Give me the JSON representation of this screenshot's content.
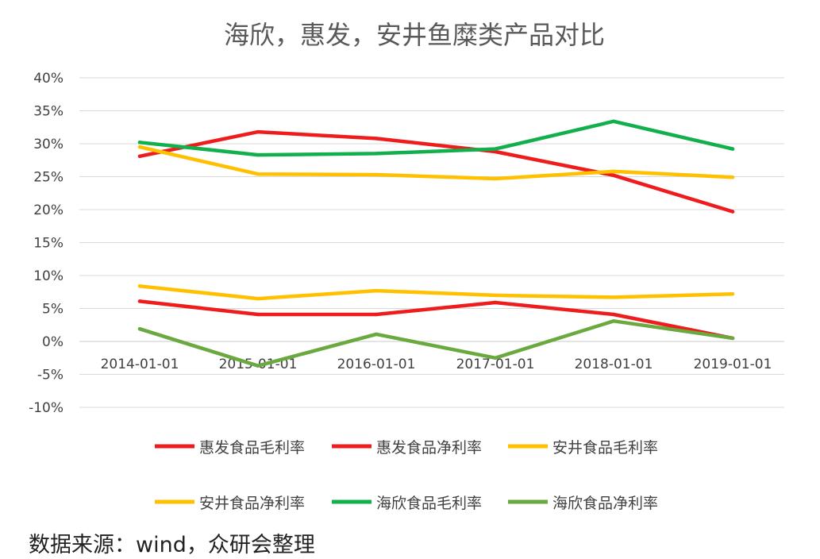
{
  "chart_data": {
    "type": "line",
    "title": "海欣，惠发，安井鱼糜类产品对比",
    "x": [
      "2014-01-01",
      "2015-01-01",
      "2016-01-01",
      "2017-01-01",
      "2018-01-01",
      "2019-01-01"
    ],
    "y_ticks": [
      "40%",
      "35%",
      "30%",
      "25%",
      "20%",
      "15%",
      "10%",
      "5%",
      "0%",
      "-5%",
      "-10%"
    ],
    "ylim": [
      -10,
      40
    ],
    "y_unit": "%",
    "grid": true,
    "legend_position": "bottom",
    "series": [
      {
        "name": "惠发食品毛利率",
        "color": "#ee1c1c",
        "values": [
          28.1,
          31.8,
          30.8,
          28.8,
          25.2,
          19.7
        ]
      },
      {
        "name": "惠发食品净利率",
        "color": "#ee1c1c",
        "values": [
          6.1,
          4.1,
          4.1,
          5.9,
          4.1,
          0.5
        ]
      },
      {
        "name": "安井食品毛利率",
        "color": "#ffc000",
        "values": [
          29.5,
          25.4,
          25.3,
          24.7,
          25.8,
          24.9
        ]
      },
      {
        "name": "安井食品净利率",
        "color": "#ffc000",
        "values": [
          8.4,
          6.5,
          7.7,
          7.0,
          6.7,
          7.2
        ]
      },
      {
        "name": "海欣食品毛利率",
        "color": "#12b04c",
        "values": [
          30.2,
          28.3,
          28.5,
          29.2,
          33.4,
          29.2
        ]
      },
      {
        "name": "海欣食品净利率",
        "color": "#6aa93e",
        "values": [
          1.9,
          -3.7,
          1.1,
          -2.5,
          3.1,
          0.5
        ]
      }
    ]
  },
  "source_note": "数据来源：wind，众研会整理"
}
